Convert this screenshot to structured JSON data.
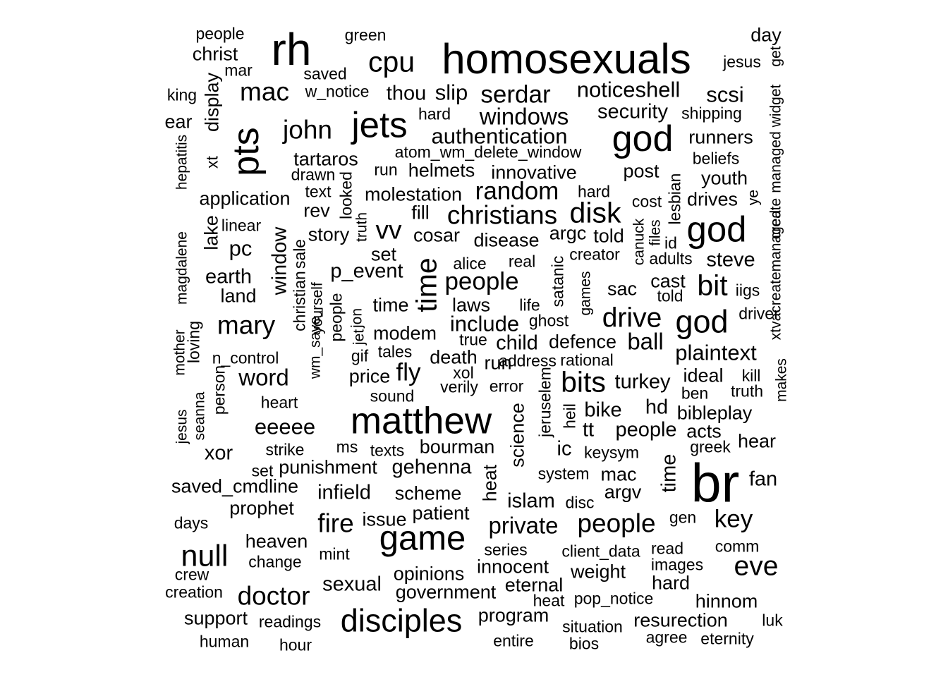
{
  "word_cloud": {
    "words": [
      "people",
      "green",
      "day",
      "rh",
      "christ",
      "homosexuals",
      "cpu",
      "get",
      "mar",
      "jesus",
      "saved",
      "king",
      "w_notice",
      "mac",
      "thou",
      "slip",
      "serdar",
      "noticeshell",
      "scsi",
      "hard",
      "shipping",
      "security",
      "widget",
      "windows",
      "ear",
      "jets",
      "display",
      "pts",
      "john",
      "god",
      "authentication",
      "runners",
      "hepatitis",
      "xt",
      "managed",
      "atom_wm_delete_window",
      "beliefs",
      "tartaros",
      "drawn",
      "run",
      "helmets",
      "innovative",
      "post",
      "youth",
      "create",
      "application",
      "looked",
      "text",
      "molestation",
      "random",
      "hard",
      "lesbian",
      "drives",
      "rev",
      "ye",
      "cost",
      "fill",
      "christians",
      "disk",
      "linear",
      "lake",
      "vv",
      "truth",
      "canuck",
      "files",
      "god",
      "magdalene",
      "story",
      "argc",
      "told",
      "cosar",
      "disease",
      "id",
      "pc",
      "sale",
      "set",
      "alice",
      "creator",
      "adults",
      "steve",
      "earth",
      "p_event",
      "real",
      "xtvacreatemanaged",
      "time",
      "cast",
      "satanic",
      "people",
      "sac",
      "bit",
      "iigs",
      "land",
      "games",
      "told",
      "christian",
      "window",
      "yourself",
      "time",
      "laws",
      "mother",
      "life",
      "god",
      "driver",
      "mary",
      "jon",
      "include",
      "drive",
      "people",
      "ghost",
      "loving",
      "jet",
      "modem",
      "true",
      "child",
      "defence",
      "ball",
      "save_",
      "plaintext",
      "tales",
      "gif",
      "n_control",
      "death",
      "address",
      "rational",
      "makes",
      "run",
      "fly",
      "person",
      "word",
      "price",
      "xol",
      "kill",
      "ideal",
      "bits",
      "turkey",
      "wm_",
      "sound",
      "verily",
      "error",
      "truth",
      "ben",
      "seanna",
      "jeruselem",
      "heart",
      "hd",
      "bibleplay",
      "bike",
      "matthew",
      "heil",
      "science",
      "jesus",
      "eeeee",
      "acts",
      "tt",
      "people",
      "hear",
      "ms",
      "strike",
      "greek",
      "texts",
      "bourman",
      "ic",
      "keysym",
      "xor",
      "time",
      "set",
      "punishment",
      "gehenna",
      "heat",
      "system",
      "mac",
      "fan",
      "br",
      "saved_cmdline",
      "infield",
      "scheme",
      "argv",
      "prophet",
      "islam",
      "disc",
      "patient",
      "gen",
      "days",
      "issue",
      "key",
      "fire",
      "private",
      "people",
      "game",
      "heaven",
      "comm",
      "read",
      "client_data",
      "null",
      "series",
      "change",
      "mint",
      "eve",
      "images",
      "innocent",
      "crew",
      "opinions",
      "weight",
      "hard",
      "eternal",
      "sexual",
      "creation",
      "government",
      "doctor",
      "heat",
      "pop_notice",
      "hinnom",
      "disciples",
      "program",
      "support",
      "resurection",
      "readings",
      "luk",
      "situation",
      "human",
      "agree",
      "eternity",
      "hour",
      "entire",
      "bios"
    ]
  }
}
